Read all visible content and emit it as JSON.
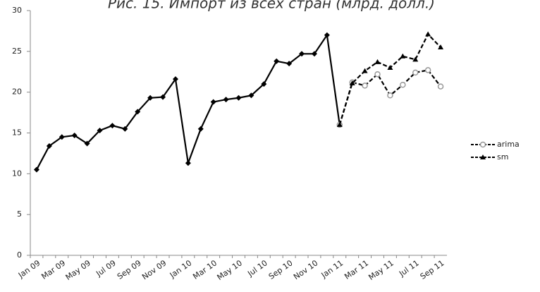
{
  "chart_data": {
    "type": "line",
    "title": "Рис. 15. Импорт из всех стран (млрд. долл.)",
    "categories": [
      "Jan 09",
      null,
      "Mar 09",
      null,
      "May 09",
      null,
      "Jul 09",
      null,
      "Sep 09",
      null,
      "Nov 09",
      null,
      "Jan 10",
      null,
      "Mar 10",
      null,
      "May 10",
      null,
      "Jul 10",
      null,
      "Sep 10",
      null,
      "Nov 10",
      null,
      "Jan 11",
      null,
      "Mar 11",
      null,
      "May 11",
      null,
      "Jul 11",
      null,
      "Sep 11"
    ],
    "series": [
      {
        "color": "#000000",
        "marker": "diamond",
        "dashed": false,
        "values": [
          10.5,
          13.4,
          14.5,
          14.7,
          13.7,
          15.3,
          15.9,
          15.5,
          17.6,
          19.3,
          19.4,
          21.6,
          11.3,
          15.5,
          18.8,
          19.1,
          19.3,
          19.6,
          21.0,
          23.8,
          23.5,
          24.7,
          24.7,
          27.0,
          16.0,
          null,
          null,
          null,
          null,
          null,
          null,
          null,
          null
        ]
      },
      {
        "name": "arima",
        "color": "#000000",
        "marker": "circle",
        "dashed": true,
        "values": [
          null,
          null,
          null,
          null,
          null,
          null,
          null,
          null,
          null,
          null,
          null,
          null,
          null,
          null,
          null,
          null,
          null,
          null,
          null,
          null,
          null,
          null,
          null,
          null,
          16.0,
          21.2,
          20.8,
          22.2,
          19.6,
          20.9,
          22.4,
          22.7,
          20.7
        ]
      },
      {
        "name": "sm",
        "color": "#000000",
        "marker": "triangle",
        "dashed": true,
        "values": [
          null,
          null,
          null,
          null,
          null,
          null,
          null,
          null,
          null,
          null,
          null,
          null,
          null,
          null,
          null,
          null,
          null,
          null,
          null,
          null,
          null,
          null,
          null,
          null,
          16.0,
          21.1,
          22.6,
          23.7,
          23.0,
          24.4,
          24.0,
          27.1,
          25.5
        ]
      }
    ],
    "ylim": [
      0,
      30
    ],
    "yticks": [
      0,
      5,
      10,
      15,
      20,
      25,
      30
    ],
    "grid": false,
    "legend": "right"
  }
}
